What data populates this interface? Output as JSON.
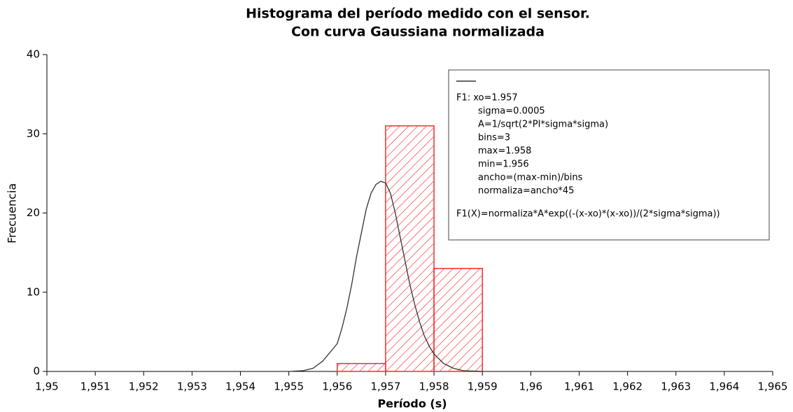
{
  "chart_data": {
    "type": "histogram",
    "title": "Histograma del período medido con el sensor.",
    "subtitle": "Con curva Gaussiana normalizada",
    "x_label": "Período (s)",
    "y_label": "Frecuencia",
    "bins": [
      1.956,
      1.957,
      1.958,
      1.959
    ],
    "counts": [
      1,
      31,
      13
    ],
    "color": "#ff2a2a",
    "curve": {
      "type": "line",
      "color": "#333333",
      "x": [
        1.95,
        1.955,
        1.9553,
        1.9555,
        1.9557,
        1.956,
        1.9561,
        1.9562,
        1.9563,
        1.9564,
        1.9565,
        1.9566,
        1.9567,
        1.9568,
        1.9569,
        1.957,
        1.9571,
        1.9572,
        1.9573,
        1.9574,
        1.9575,
        1.9576,
        1.9577,
        1.9578,
        1.9579,
        1.958,
        1.9582,
        1.9584,
        1.9586,
        1.959,
        1.965
      ],
      "values": [
        0,
        0,
        0.1,
        0.4,
        1.3,
        3.5,
        5.5,
        8,
        11,
        14.5,
        17.5,
        20.5,
        22.5,
        23.6,
        24,
        23.8,
        22.5,
        20,
        17,
        14,
        11,
        8.5,
        6.3,
        4.5,
        3.2,
        2.2,
        1,
        0.4,
        0.1,
        0,
        0
      ]
    },
    "xlim": [
      1.95,
      1.965
    ],
    "xticks": [
      {
        "value": 1.95,
        "label": "1,95"
      },
      {
        "value": 1.951,
        "label": "1,951"
      },
      {
        "value": 1.952,
        "label": "1,952"
      },
      {
        "value": 1.953,
        "label": "1,953"
      },
      {
        "value": 1.954,
        "label": "1,954"
      },
      {
        "value": 1.955,
        "label": "1,955"
      },
      {
        "value": 1.956,
        "label": "1,956"
      },
      {
        "value": 1.957,
        "label": "1,957"
      },
      {
        "value": 1.958,
        "label": "1,958"
      },
      {
        "value": 1.959,
        "label": "1,959"
      },
      {
        "value": 1.96,
        "label": "1,96"
      },
      {
        "value": 1.961,
        "label": "1,961"
      },
      {
        "value": 1.962,
        "label": "1,962"
      },
      {
        "value": 1.963,
        "label": "1,963"
      },
      {
        "value": 1.964,
        "label": "1,964"
      },
      {
        "value": 1.965,
        "label": "1,965"
      }
    ],
    "ylim": [
      0,
      40
    ],
    "yticks": [
      0,
      10,
      20,
      30,
      40
    ],
    "grid": false,
    "legend": {
      "position": "upper right",
      "lines": [
        "F1: xo=1.957",
        "sigma=0.0005",
        "A=1/sqrt(2*PI*sigma*sigma)",
        "bins=3",
        "max=1.958",
        "min=1.956",
        "ancho=(max-min)/bins",
        "normaliza=ancho*45",
        "F1(X)=normaliza*A*exp((-(x-xo)*(x-xo))/(2*sigma*sigma))"
      ]
    }
  }
}
